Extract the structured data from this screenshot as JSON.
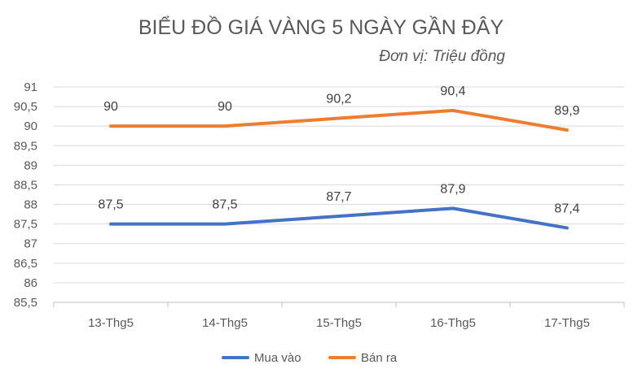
{
  "chart_data": {
    "type": "line",
    "title": "BIỂU ĐỒ GIÁ VÀNG 5 NGÀY GẦN ĐÂY",
    "subtitle": "Đơn vị: Triệu đồng",
    "categories": [
      "13-Thg5",
      "14-Thg5",
      "15-Thg5",
      "16-Thg5",
      "17-Thg5"
    ],
    "series": [
      {
        "name": "Mua vào",
        "color": "#4472C4",
        "values": [
          87.5,
          87.5,
          87.7,
          87.9,
          87.4
        ],
        "labels": [
          "87,5",
          "87,5",
          "87,7",
          "87,9",
          "87,4"
        ]
      },
      {
        "name": "Bán ra",
        "color": "#ED7D31",
        "values": [
          90,
          90,
          90.2,
          90.4,
          89.9
        ],
        "labels": [
          "90",
          "90",
          "90,2",
          "90,4",
          "89,9"
        ]
      }
    ],
    "y_ticks": [
      "85,5",
      "86",
      "86,5",
      "87",
      "87,5",
      "88",
      "88,5",
      "89",
      "89,5",
      "90",
      "90,5",
      "91"
    ],
    "ylim": [
      85.5,
      91
    ],
    "grid": true,
    "legend_position": "bottom"
  }
}
